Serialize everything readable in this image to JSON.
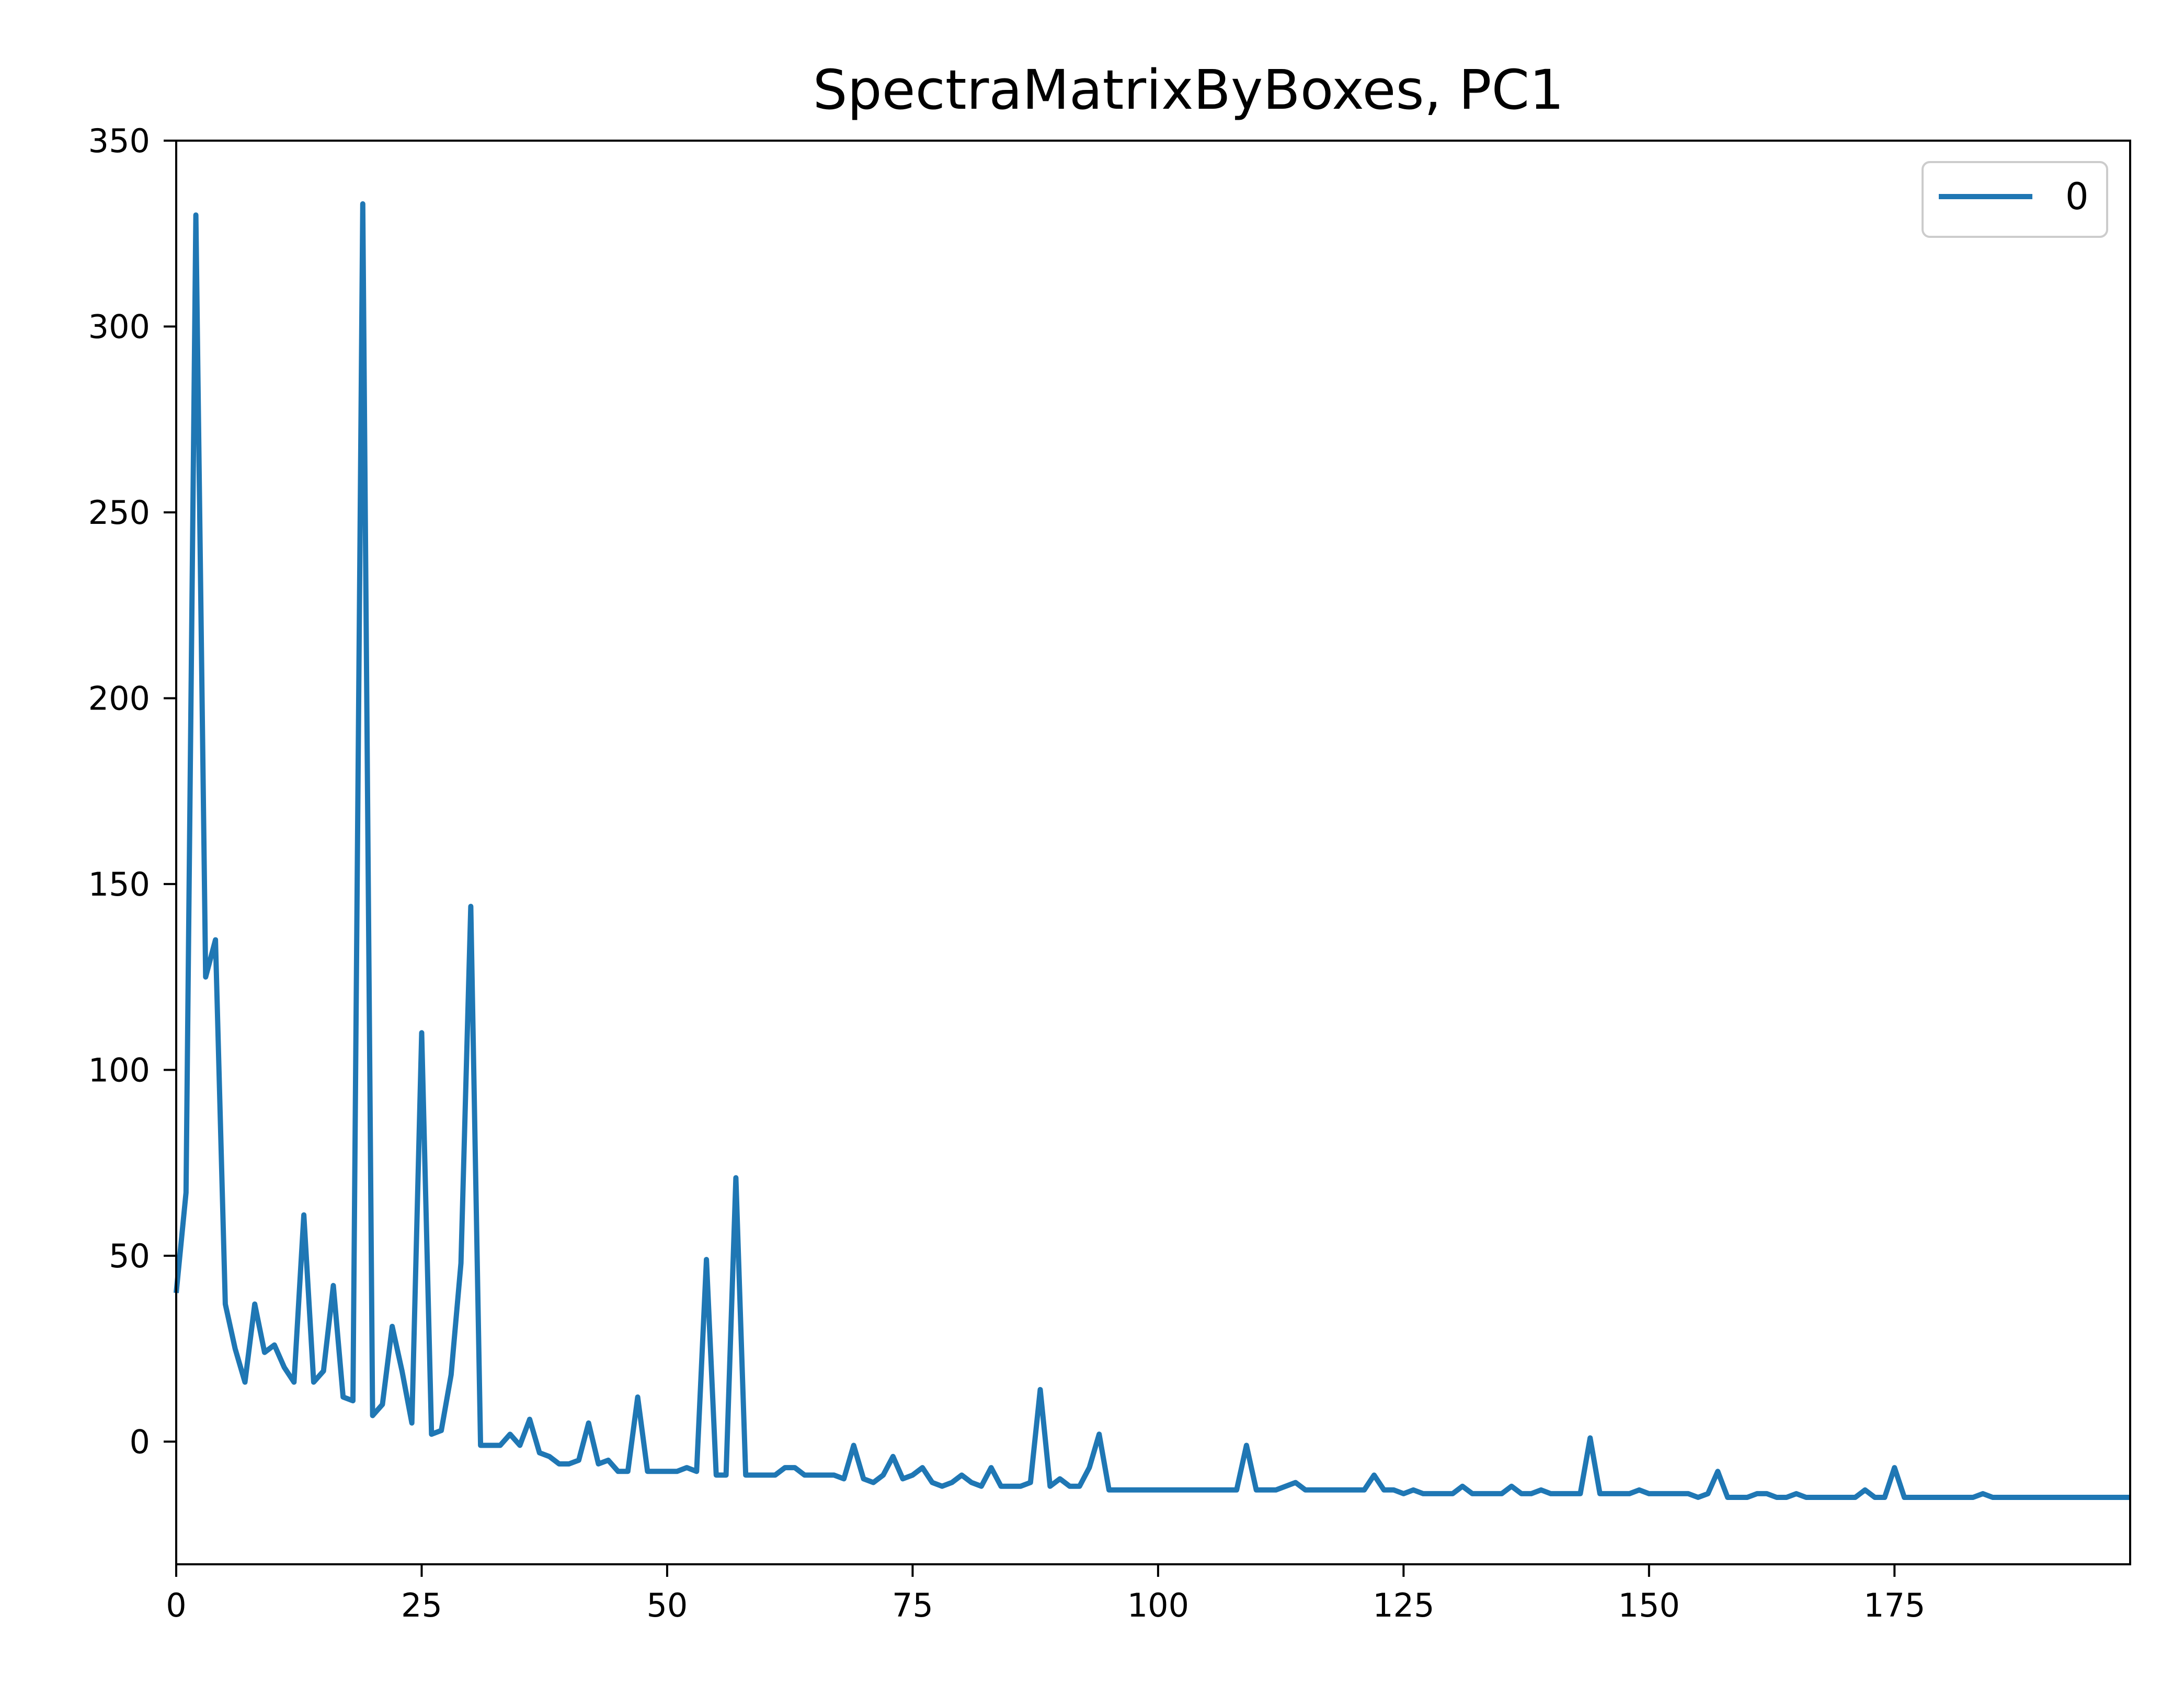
{
  "chart_data": {
    "type": "line",
    "title": "SpectraMatrixByBoxes, PC1",
    "xlabel": "",
    "ylabel": "",
    "xlim": [
      0,
      199
    ],
    "ylim": [
      -33,
      350
    ],
    "xticks": [
      0,
      25,
      50,
      75,
      100,
      125,
      150,
      175
    ],
    "yticks": [
      0,
      50,
      100,
      150,
      200,
      250,
      300,
      350
    ],
    "xtick_labels": [
      "0",
      "25",
      "50",
      "75",
      "100",
      "125",
      "150",
      "175"
    ],
    "ytick_labels": [
      "0",
      "50",
      "100",
      "150",
      "200",
      "250",
      "300",
      "350"
    ],
    "grid": false,
    "legend_position": "top-right",
    "colors": {
      "series": "#1f77b4"
    },
    "series": [
      {
        "name": "0",
        "x_start": 0,
        "x_step": 1,
        "values": [
          40,
          67,
          330,
          125,
          135,
          37,
          25,
          16,
          37,
          24,
          26,
          20,
          16,
          61,
          16,
          19,
          42,
          12,
          11,
          333,
          7,
          10,
          31,
          19,
          5,
          110,
          2,
          3,
          18,
          48,
          144,
          -1,
          -1,
          -1,
          2,
          -1,
          6,
          -3,
          -4,
          -6,
          -6,
          -5,
          5,
          -6,
          -5,
          -8,
          -8,
          12,
          -8,
          -8,
          -8,
          -8,
          -7,
          -8,
          49,
          -9,
          -9,
          71,
          -9,
          -9,
          -9,
          -9,
          -7,
          -7,
          -9,
          -9,
          -9,
          -9,
          -10,
          -1,
          -10,
          -11,
          -9,
          -4,
          -10,
          -9,
          -7,
          -11,
          -12,
          -11,
          -9,
          -11,
          -12,
          -7,
          -12,
          -12,
          -12,
          -11,
          14,
          -12,
          -10,
          -12,
          -12,
          -7,
          2,
          -13,
          -13,
          -13,
          -13,
          -13,
          -13,
          -13,
          -13,
          -13,
          -13,
          -13,
          -13,
          -13,
          -13,
          -1,
          -13,
          -13,
          -13,
          -12,
          -11,
          -13,
          -13,
          -13,
          -13,
          -13,
          -13,
          -13,
          -9,
          -13,
          -13,
          -14,
          -13,
          -14,
          -14,
          -14,
          -14,
          -12,
          -14,
          -14,
          -14,
          -14,
          -12,
          -14,
          -14,
          -13,
          -14,
          -14,
          -14,
          -14,
          1,
          -14,
          -14,
          -14,
          -14,
          -13,
          -14,
          -14,
          -14,
          -14,
          -14,
          -15,
          -14,
          -8,
          -15,
          -15,
          -15,
          -14,
          -14,
          -15,
          -15,
          -14,
          -15,
          -15,
          -15,
          -15,
          -15,
          -15,
          -13,
          -15,
          -15,
          -7,
          -15,
          -15,
          -15,
          -15,
          -15,
          -15,
          -15,
          -15,
          -14,
          -15,
          -15,
          -15,
          -15,
          -15,
          -15,
          -15,
          -15,
          -15,
          -15,
          -15,
          -15,
          -15,
          -15,
          -15
        ]
      }
    ]
  }
}
